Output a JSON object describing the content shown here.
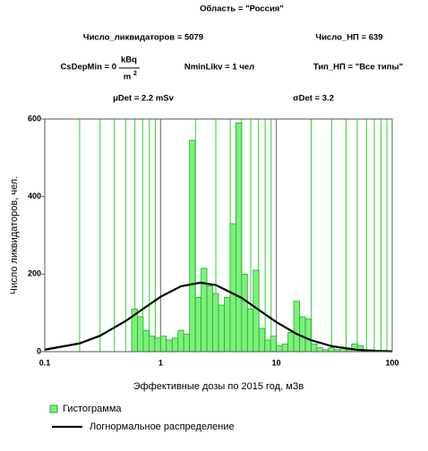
{
  "chart_data": {
    "type": "histogram",
    "title": "Область = \"Россия\"",
    "annotations": [
      "Число_ликвидаторов = 5079",
      "Число_НП = 639",
      "CsDepMin = 0",
      "kBq",
      "m",
      "2",
      "NminLikv = 1 чел",
      "Тип_НП = \"Все типы\"",
      "μDet = 2.2 mSv",
      "σDet = 3.2"
    ],
    "x_label": "Эффективные дозы по 2015 год, мЗв",
    "y_label": "Число  ликвидаторов, чел.",
    "xscale": "log",
    "xlim": [
      0.1,
      100
    ],
    "xticks": [
      0.1,
      1,
      10,
      100
    ],
    "x_minor_gridlines": [
      0.2,
      0.3,
      0.4,
      0.5,
      0.6,
      0.7,
      0.8,
      0.9,
      2,
      3,
      4,
      5,
      6,
      7,
      8,
      9,
      20,
      30,
      40,
      50,
      60,
      70,
      80,
      90
    ],
    "ylim": [
      0,
      600
    ],
    "yticks": [
      0,
      200,
      400,
      600
    ],
    "xgrid": true,
    "ygrid": false,
    "legend": "bottom-left",
    "bins": [
      0.562,
      0.631,
      0.708,
      0.794,
      0.891,
      1,
      1.122,
      1.259,
      1.413,
      1.585,
      1.778,
      1.995,
      2.239,
      2.512,
      2.818,
      3.162,
      3.548,
      3.981,
      4.467,
      5.012,
      5.623,
      6.31,
      7.079,
      7.943,
      8.913,
      10,
      11.22,
      12.59,
      14.13,
      15.85,
      17.78,
      19.95,
      22.39,
      25.12,
      28.18,
      31.62,
      35.48,
      39.81,
      44.67,
      50.12,
      56.23,
      63.1,
      70.79,
      79.43
    ],
    "series": [
      {
        "name": "Гистограмма",
        "color": "#7cf07c",
        "values": [
          110,
          90,
          55,
          40,
          35,
          40,
          30,
          35,
          55,
          45,
          545,
          140,
          215,
          170,
          150,
          120,
          140,
          330,
          590,
          200,
          110,
          210,
          60,
          30,
          40,
          15,
          20,
          50,
          130,
          90,
          85,
          20,
          10,
          5,
          10,
          5,
          10,
          5,
          20,
          15,
          5,
          5,
          2
        ]
      },
      {
        "name": "Логнормальное распределение",
        "color": "#000000",
        "x": [
          0.1,
          0.2,
          0.3,
          0.5,
          0.7,
          1,
          1.5,
          2.2,
          3,
          5,
          7,
          10,
          15,
          20,
          30,
          50,
          70,
          100
        ],
        "values": [
          5.2,
          21.3,
          41.1,
          79.1,
          109.6,
          141.5,
          168.6,
          178,
          171.8,
          138.8,
          108.5,
          76.3,
          45.6,
          29.4,
          14.3,
          4.8,
          2.1,
          0.8
        ]
      }
    ]
  }
}
